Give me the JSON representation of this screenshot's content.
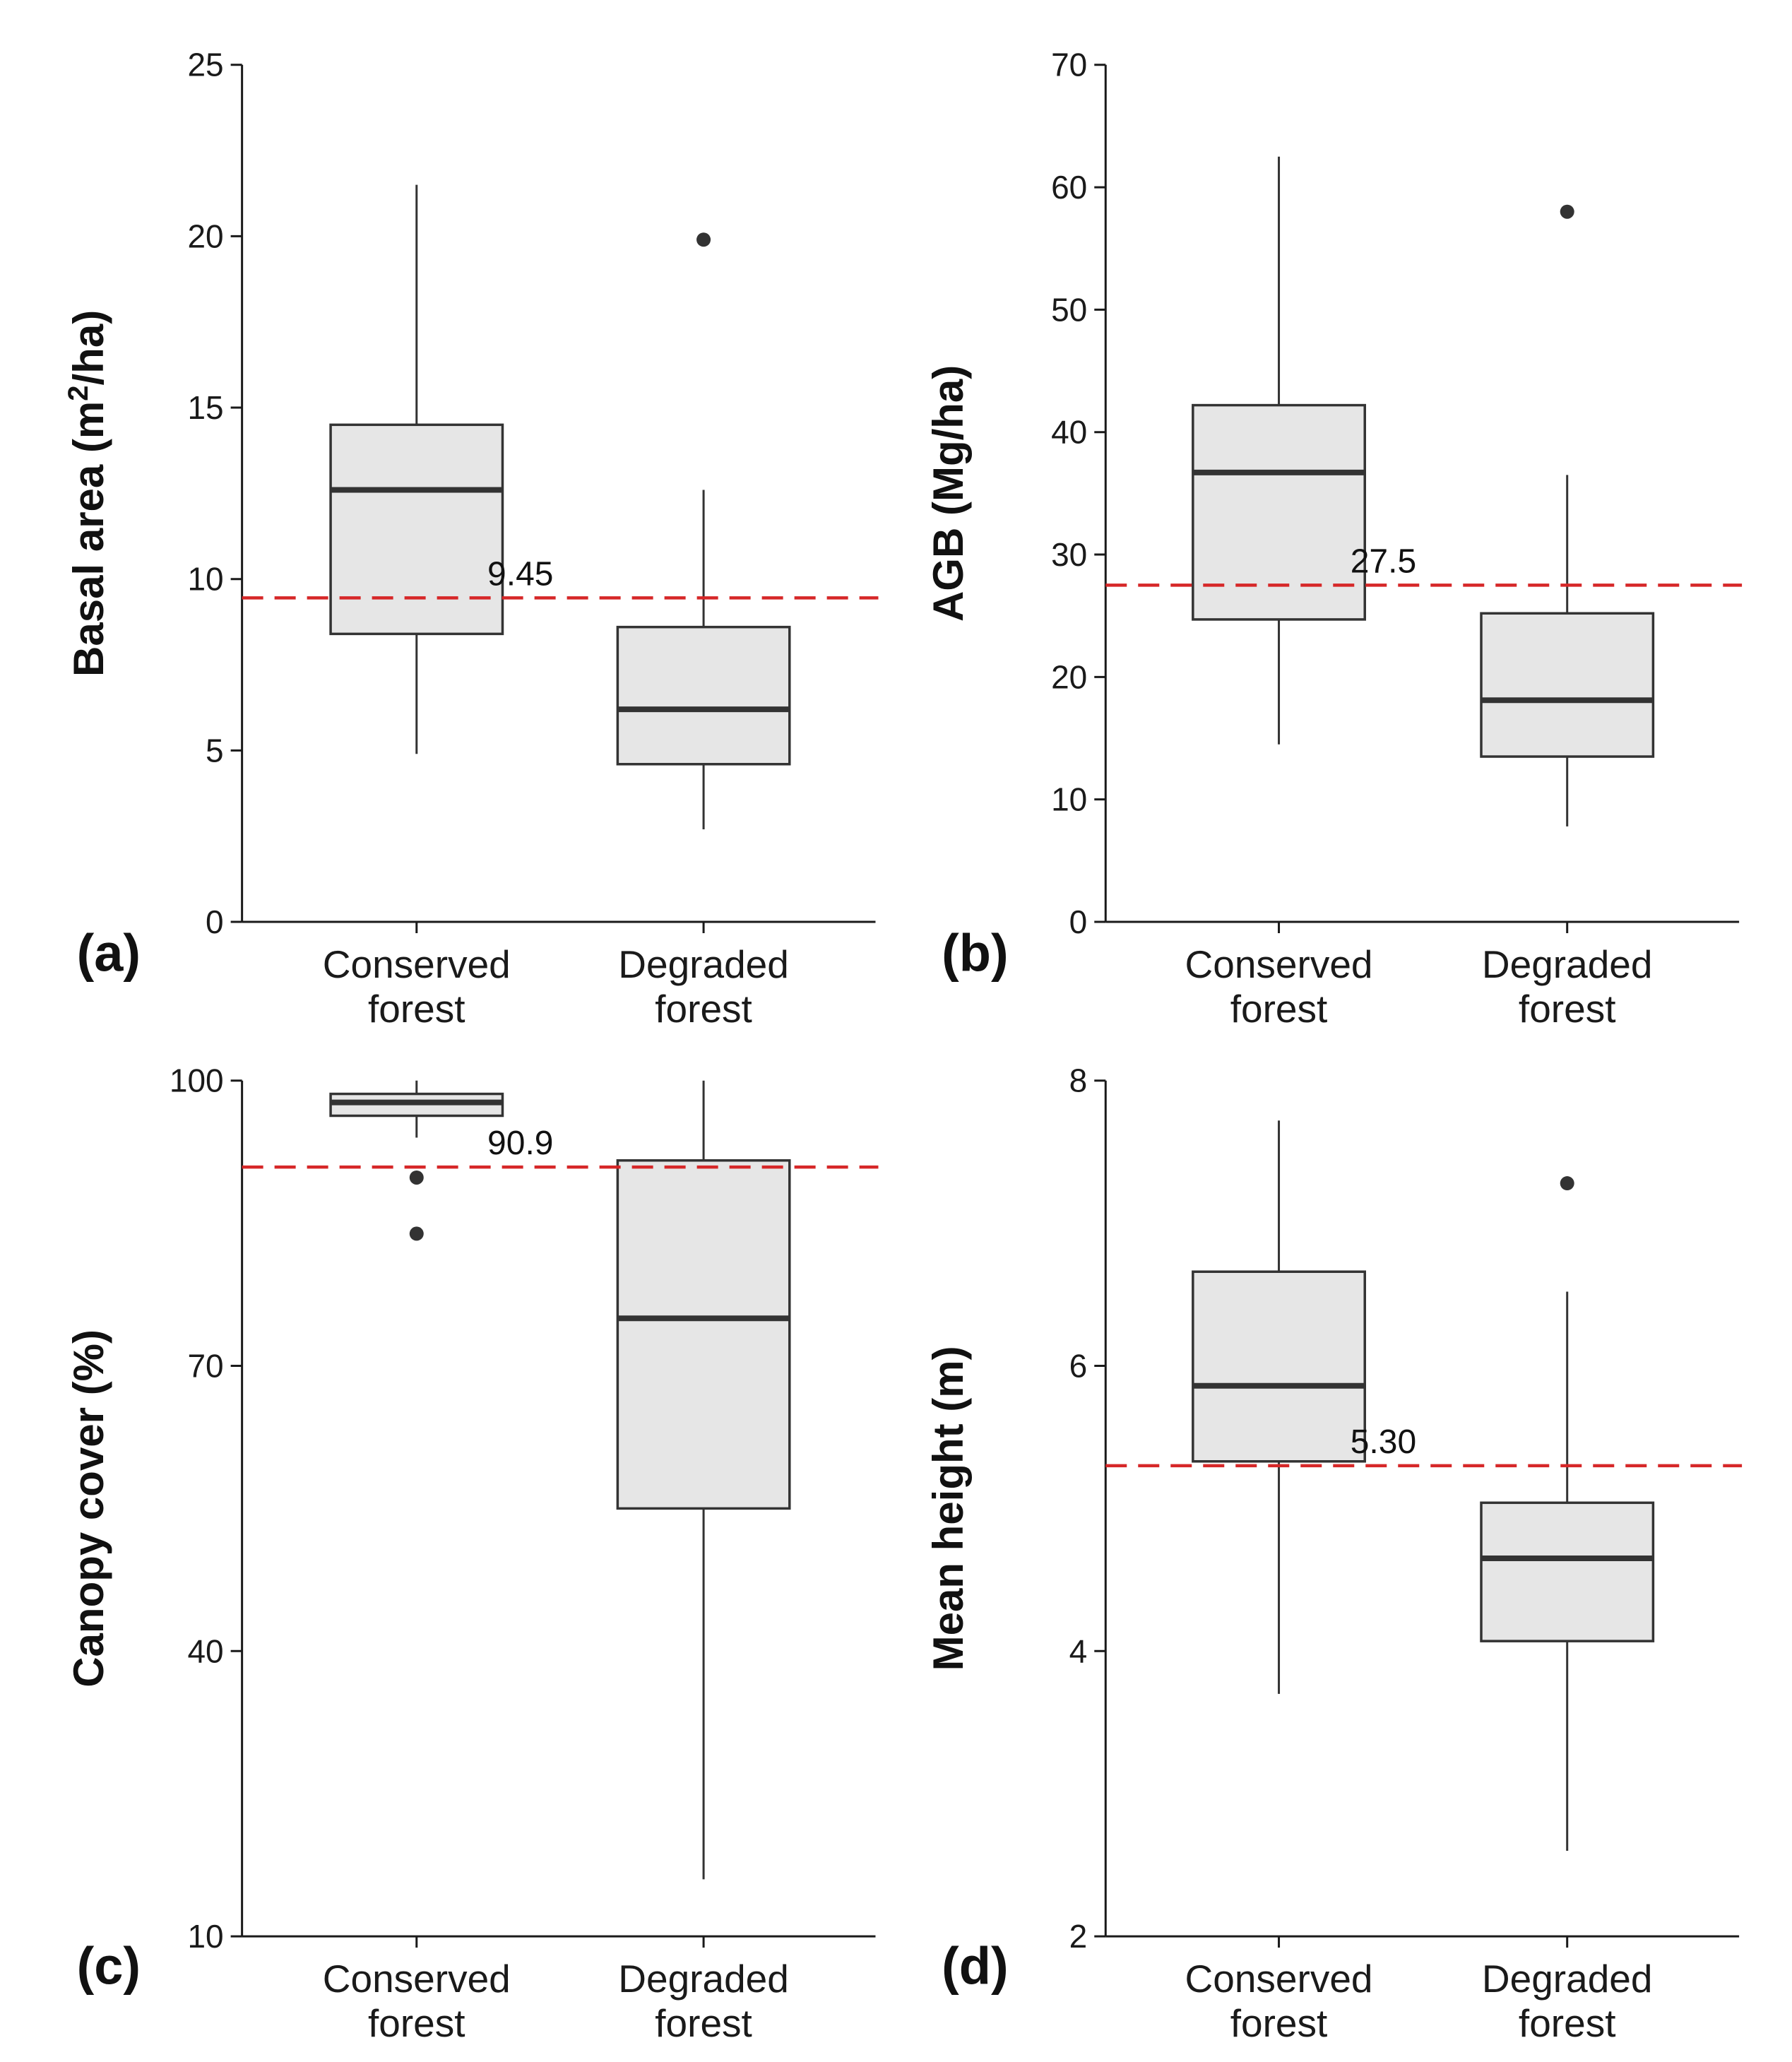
{
  "chart_data": [
    {
      "type": "boxplot",
      "panel_label": "(a)",
      "ylabel": "Basal area (m²/ha)",
      "ylabel_parts": {
        "main": "Basal area (m",
        "sup": "2",
        "end": "/ha)"
      },
      "ylim": [
        0,
        25
      ],
      "yticks": [
        0,
        5,
        10,
        15,
        20,
        25
      ],
      "categories": [
        [
          "Conserved",
          "forest"
        ],
        [
          "Degraded",
          "forest"
        ]
      ],
      "boxes": [
        {
          "category": "Conserved forest",
          "whisker_low": 4.9,
          "q1": 8.4,
          "median": 12.6,
          "q3": 14.5,
          "whisker_high": 21.5,
          "outliers": []
        },
        {
          "category": "Degraded forest",
          "whisker_low": 2.7,
          "q1": 4.6,
          "median": 6.2,
          "q3": 8.6,
          "whisker_high": 12.6,
          "outliers": [
            19.9
          ]
        }
      ],
      "reference_line": {
        "value": 9.45,
        "label": "9.45",
        "color": "#d62728"
      }
    },
    {
      "type": "boxplot",
      "panel_label": "(b)",
      "ylabel": "AGB (Mg/ha)",
      "ylim": [
        0,
        70
      ],
      "yticks": [
        0,
        10,
        20,
        30,
        40,
        50,
        60,
        70
      ],
      "categories": [
        [
          "Conserved",
          "forest"
        ],
        [
          "Degraded",
          "forest"
        ]
      ],
      "boxes": [
        {
          "category": "Conserved forest",
          "whisker_low": 14.5,
          "q1": 24.7,
          "median": 36.7,
          "q3": 42.2,
          "whisker_high": 62.5,
          "outliers": []
        },
        {
          "category": "Degraded forest",
          "whisker_low": 7.8,
          "q1": 13.5,
          "median": 18.1,
          "q3": 25.2,
          "whisker_high": 36.5,
          "outliers": [
            58.0
          ]
        }
      ],
      "reference_line": {
        "value": 27.5,
        "label": "27.5",
        "color": "#d62728"
      }
    },
    {
      "type": "boxplot",
      "panel_label": "(c)",
      "ylabel": "Canopy cover (%)",
      "ylim": [
        10,
        100
      ],
      "yticks": [
        10,
        40,
        70,
        100
      ],
      "categories": [
        [
          "Conserved",
          "forest"
        ],
        [
          "Degraded",
          "forest"
        ]
      ],
      "boxes": [
        {
          "category": "Conserved forest",
          "whisker_low": 94.0,
          "q1": 96.3,
          "median": 97.7,
          "q3": 98.6,
          "whisker_high": 100.0,
          "outliers": [
            89.8,
            83.9
          ]
        },
        {
          "category": "Degraded forest",
          "whisker_low": 16.0,
          "q1": 55.0,
          "median": 75.0,
          "q3": 91.6,
          "whisker_high": 100.0,
          "outliers": []
        }
      ],
      "reference_line": {
        "value": 90.9,
        "label": "90.9",
        "color": "#d62728"
      }
    },
    {
      "type": "boxplot",
      "panel_label": "(d)",
      "ylabel": "Mean height (m)",
      "ylim": [
        2,
        8
      ],
      "yticks": [
        2,
        4,
        6,
        8
      ],
      "categories": [
        [
          "Conserved",
          "forest"
        ],
        [
          "Degraded",
          "forest"
        ]
      ],
      "boxes": [
        {
          "category": "Conserved forest",
          "whisker_low": 3.7,
          "q1": 5.33,
          "median": 5.86,
          "q3": 6.66,
          "whisker_high": 7.72,
          "outliers": []
        },
        {
          "category": "Degraded forest",
          "whisker_low": 2.6,
          "q1": 4.07,
          "median": 4.65,
          "q3": 5.04,
          "whisker_high": 6.52,
          "outliers": [
            7.28
          ]
        }
      ],
      "reference_line": {
        "value": 5.3,
        "label": "5.30",
        "color": "#d62728"
      }
    }
  ]
}
